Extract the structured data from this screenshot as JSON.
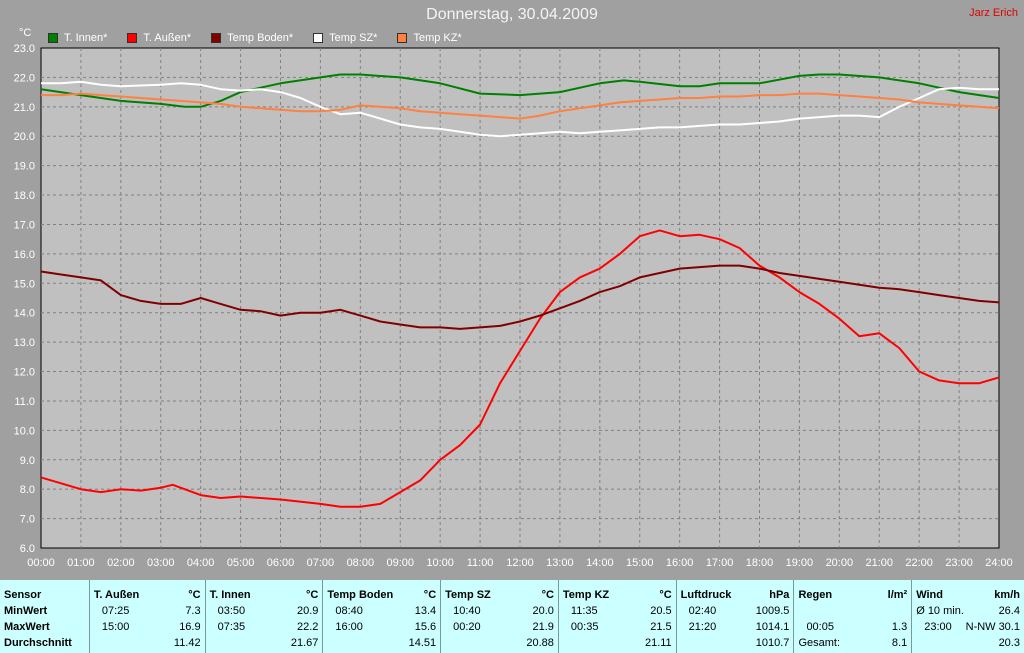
{
  "header": {
    "title": "Donnerstag, 30.04.2009",
    "author": "Jarz Erich",
    "unit": "°C"
  },
  "colors": {
    "background": "#a0a0a0",
    "plot": "#c0c0c0",
    "innen": "#008000",
    "aussen": "#ff0000",
    "boden": "#800000",
    "sz": "#ffffff",
    "kz": "#ff8040",
    "stats_bg": "#ccffff"
  },
  "chart_data": {
    "type": "line",
    "title": "Donnerstag, 30.04.2009",
    "ylabel": "°C",
    "xlabel": "",
    "ylim": [
      6.0,
      23.0
    ],
    "xlim": [
      0,
      24
    ],
    "grid": true,
    "legend_position": "top-left",
    "x_ticks": [
      "00:00",
      "01:00",
      "02:00",
      "03:00",
      "04:00",
      "05:00",
      "06:00",
      "07:00",
      "08:00",
      "09:00",
      "10:00",
      "11:00",
      "12:00",
      "13:00",
      "14:00",
      "15:00",
      "16:00",
      "17:00",
      "18:00",
      "19:00",
      "20:00",
      "21:00",
      "22:00",
      "23:00",
      "24:00"
    ],
    "y_ticks": [
      "6.0",
      "7.0",
      "8.0",
      "9.0",
      "10.0",
      "11.0",
      "12.0",
      "13.0",
      "14.0",
      "15.0",
      "16.0",
      "17.0",
      "18.0",
      "19.0",
      "20.0",
      "21.0",
      "22.0",
      "23.0"
    ],
    "series": [
      {
        "name": "T. Innen*",
        "color": "#008000",
        "points": [
          [
            0,
            21.6
          ],
          [
            1,
            21.4
          ],
          [
            2,
            21.2
          ],
          [
            3,
            21.1
          ],
          [
            3.6,
            21.0
          ],
          [
            4,
            21.0
          ],
          [
            4.5,
            21.2
          ],
          [
            5,
            21.5
          ],
          [
            6,
            21.8
          ],
          [
            7,
            22.0
          ],
          [
            7.5,
            22.1
          ],
          [
            8,
            22.1
          ],
          [
            9,
            22.0
          ],
          [
            10,
            21.8
          ],
          [
            11,
            21.45
          ],
          [
            12,
            21.4
          ],
          [
            13,
            21.5
          ],
          [
            14,
            21.8
          ],
          [
            14.6,
            21.9
          ],
          [
            15,
            21.85
          ],
          [
            16,
            21.7
          ],
          [
            16.5,
            21.7
          ],
          [
            17,
            21.8
          ],
          [
            18,
            21.8
          ],
          [
            19,
            22.05
          ],
          [
            19.5,
            22.1
          ],
          [
            20,
            22.1
          ],
          [
            21,
            22.0
          ],
          [
            22,
            21.8
          ],
          [
            23,
            21.5
          ],
          [
            24,
            21.3
          ]
        ]
      },
      {
        "name": "T. Außen*",
        "color": "#ff0000",
        "points": [
          [
            0,
            8.4
          ],
          [
            0.5,
            8.2
          ],
          [
            1,
            8.0
          ],
          [
            1.5,
            7.9
          ],
          [
            2,
            8.0
          ],
          [
            2.5,
            7.95
          ],
          [
            3,
            8.05
          ],
          [
            3.3,
            8.15
          ],
          [
            4,
            7.8
          ],
          [
            4.5,
            7.7
          ],
          [
            5,
            7.75
          ],
          [
            6,
            7.65
          ],
          [
            7,
            7.5
          ],
          [
            7.5,
            7.4
          ],
          [
            8,
            7.4
          ],
          [
            8.5,
            7.5
          ],
          [
            9,
            7.9
          ],
          [
            9.5,
            8.3
          ],
          [
            10,
            9.0
          ],
          [
            10.5,
            9.5
          ],
          [
            11,
            10.2
          ],
          [
            11.5,
            11.6
          ],
          [
            12,
            12.7
          ],
          [
            12.5,
            13.8
          ],
          [
            13,
            14.7
          ],
          [
            13.5,
            15.2
          ],
          [
            14,
            15.5
          ],
          [
            14.5,
            16.0
          ],
          [
            15,
            16.6
          ],
          [
            15.5,
            16.8
          ],
          [
            16,
            16.6
          ],
          [
            16.5,
            16.65
          ],
          [
            17,
            16.5
          ],
          [
            17.5,
            16.2
          ],
          [
            18,
            15.6
          ],
          [
            18.5,
            15.2
          ],
          [
            19,
            14.7
          ],
          [
            19.5,
            14.3
          ],
          [
            20,
            13.8
          ],
          [
            20.5,
            13.2
          ],
          [
            21,
            13.3
          ],
          [
            21.5,
            12.8
          ],
          [
            22,
            12.0
          ],
          [
            22.5,
            11.7
          ],
          [
            23,
            11.6
          ],
          [
            23.5,
            11.6
          ],
          [
            24,
            11.8
          ]
        ]
      },
      {
        "name": "Temp Boden*",
        "color": "#800000",
        "points": [
          [
            0,
            15.4
          ],
          [
            0.5,
            15.3
          ],
          [
            1,
            15.2
          ],
          [
            1.5,
            15.1
          ],
          [
            2,
            14.6
          ],
          [
            2.5,
            14.4
          ],
          [
            3,
            14.3
          ],
          [
            3.5,
            14.3
          ],
          [
            4,
            14.5
          ],
          [
            4.5,
            14.3
          ],
          [
            5,
            14.1
          ],
          [
            5.5,
            14.05
          ],
          [
            6,
            13.9
          ],
          [
            6.5,
            14.0
          ],
          [
            7,
            14.0
          ],
          [
            7.5,
            14.1
          ],
          [
            8,
            13.9
          ],
          [
            8.5,
            13.7
          ],
          [
            9,
            13.6
          ],
          [
            9.5,
            13.5
          ],
          [
            10,
            13.5
          ],
          [
            10.5,
            13.45
          ],
          [
            11,
            13.5
          ],
          [
            11.5,
            13.55
          ],
          [
            12,
            13.7
          ],
          [
            12.5,
            13.9
          ],
          [
            13,
            14.15
          ],
          [
            13.5,
            14.4
          ],
          [
            14,
            14.7
          ],
          [
            14.5,
            14.9
          ],
          [
            15,
            15.2
          ],
          [
            15.5,
            15.35
          ],
          [
            16,
            15.5
          ],
          [
            16.5,
            15.55
          ],
          [
            17,
            15.6
          ],
          [
            17.5,
            15.6
          ],
          [
            18,
            15.5
          ],
          [
            18.5,
            15.35
          ],
          [
            19,
            15.25
          ],
          [
            19.5,
            15.15
          ],
          [
            20,
            15.05
          ],
          [
            20.5,
            14.95
          ],
          [
            21,
            14.85
          ],
          [
            21.5,
            14.8
          ],
          [
            22,
            14.7
          ],
          [
            22.5,
            14.6
          ],
          [
            23,
            14.5
          ],
          [
            23.5,
            14.4
          ],
          [
            24,
            14.35
          ]
        ]
      },
      {
        "name": "Temp SZ*",
        "color": "#ffffff",
        "points": [
          [
            0,
            21.8
          ],
          [
            0.5,
            21.8
          ],
          [
            1,
            21.85
          ],
          [
            1.5,
            21.75
          ],
          [
            2,
            21.7
          ],
          [
            3,
            21.75
          ],
          [
            3.5,
            21.8
          ],
          [
            4,
            21.75
          ],
          [
            4.5,
            21.6
          ],
          [
            5,
            21.55
          ],
          [
            5.5,
            21.6
          ],
          [
            6,
            21.5
          ],
          [
            6.5,
            21.3
          ],
          [
            7,
            21.0
          ],
          [
            7.5,
            20.75
          ],
          [
            8,
            20.8
          ],
          [
            8.5,
            20.6
          ],
          [
            9,
            20.4
          ],
          [
            9.5,
            20.3
          ],
          [
            10,
            20.25
          ],
          [
            10.5,
            20.15
          ],
          [
            11,
            20.05
          ],
          [
            11.5,
            20.0
          ],
          [
            12,
            20.05
          ],
          [
            12.5,
            20.1
          ],
          [
            13,
            20.15
          ],
          [
            13.5,
            20.1
          ],
          [
            14,
            20.15
          ],
          [
            14.5,
            20.2
          ],
          [
            15,
            20.25
          ],
          [
            15.5,
            20.3
          ],
          [
            16,
            20.3
          ],
          [
            16.5,
            20.35
          ],
          [
            17,
            20.4
          ],
          [
            17.5,
            20.4
          ],
          [
            18,
            20.45
          ],
          [
            18.5,
            20.5
          ],
          [
            19,
            20.6
          ],
          [
            19.5,
            20.65
          ],
          [
            20,
            20.7
          ],
          [
            20.5,
            20.7
          ],
          [
            21,
            20.65
          ],
          [
            21.5,
            21.0
          ],
          [
            22,
            21.3
          ],
          [
            22.5,
            21.6
          ],
          [
            23,
            21.65
          ],
          [
            23.5,
            21.6
          ],
          [
            24,
            21.6
          ]
        ]
      },
      {
        "name": "Temp KZ*",
        "color": "#ff8040",
        "points": [
          [
            0,
            21.4
          ],
          [
            0.5,
            21.4
          ],
          [
            1,
            21.45
          ],
          [
            1.5,
            21.4
          ],
          [
            2,
            21.35
          ],
          [
            2.5,
            21.3
          ],
          [
            3,
            21.25
          ],
          [
            3.5,
            21.2
          ],
          [
            4,
            21.15
          ],
          [
            4.5,
            21.1
          ],
          [
            5,
            21.0
          ],
          [
            5.5,
            20.95
          ],
          [
            6,
            20.9
          ],
          [
            6.5,
            20.85
          ],
          [
            7,
            20.85
          ],
          [
            7.5,
            20.9
          ],
          [
            8,
            21.05
          ],
          [
            8.5,
            21.0
          ],
          [
            9,
            20.95
          ],
          [
            9.5,
            20.85
          ],
          [
            10,
            20.8
          ],
          [
            10.5,
            20.75
          ],
          [
            11,
            20.7
          ],
          [
            11.5,
            20.65
          ],
          [
            12,
            20.6
          ],
          [
            12.5,
            20.7
          ],
          [
            13,
            20.85
          ],
          [
            13.5,
            20.95
          ],
          [
            14,
            21.05
          ],
          [
            14.5,
            21.15
          ],
          [
            15,
            21.2
          ],
          [
            15.5,
            21.25
          ],
          [
            16,
            21.3
          ],
          [
            16.5,
            21.3
          ],
          [
            17,
            21.35
          ],
          [
            17.5,
            21.35
          ],
          [
            18,
            21.4
          ],
          [
            18.5,
            21.4
          ],
          [
            19,
            21.45
          ],
          [
            19.5,
            21.45
          ],
          [
            20,
            21.4
          ],
          [
            20.5,
            21.35
          ],
          [
            21,
            21.3
          ],
          [
            21.5,
            21.25
          ],
          [
            22,
            21.15
          ],
          [
            22.5,
            21.1
          ],
          [
            23,
            21.05
          ],
          [
            23.5,
            21.0
          ],
          [
            24,
            20.95
          ]
        ]
      }
    ]
  },
  "stats": {
    "row_labels": {
      "sensor": "Sensor",
      "min": "MinWert",
      "max": "MaxWert",
      "avg": "Durchschnitt"
    },
    "aussen": {
      "name": "T. Außen",
      "unit": "°C",
      "min_time": "07:25",
      "min": "7.3",
      "max_time": "15:00",
      "max": "16.9",
      "avg": "11.42"
    },
    "innen": {
      "name": "T. Innen",
      "unit": "°C",
      "min_time": "03:50",
      "min": "20.9",
      "max_time": "07:35",
      "max": "22.2",
      "avg": "21.67"
    },
    "boden": {
      "name": "Temp Boden",
      "unit": "°C",
      "min_time": "08:40",
      "min": "13.4",
      "max_time": "16:00",
      "max": "15.6",
      "avg": "14.51"
    },
    "sz": {
      "name": "Temp SZ",
      "unit": "°C",
      "min_time": "10:40",
      "min": "20.0",
      "max_time": "00:20",
      "max": "21.9",
      "avg": "20.88"
    },
    "kz": {
      "name": "Temp KZ",
      "unit": "°C",
      "min_time": "11:35",
      "min": "20.5",
      "max_time": "00:35",
      "max": "21.5",
      "avg": "21.11"
    },
    "druck": {
      "name": "Luftdruck",
      "unit": "hPa",
      "min_time": "02:40",
      "min": "1009.5",
      "max_time": "21:20",
      "max": "1014.1",
      "avg": "1010.7"
    },
    "regen": {
      "name": "Regen",
      "unit": "l/m²",
      "max_time": "00:05",
      "max": "1.3",
      "total_label": "Gesamt:",
      "total": "8.1"
    },
    "wind": {
      "name": "Wind",
      "unit": "km/h",
      "avg10_label": "Ø 10 min.",
      "avg10": "26.4",
      "max_time": "23:00",
      "max_dir": "N-NW",
      "max": "30.1",
      "avg": "20.3"
    }
  }
}
